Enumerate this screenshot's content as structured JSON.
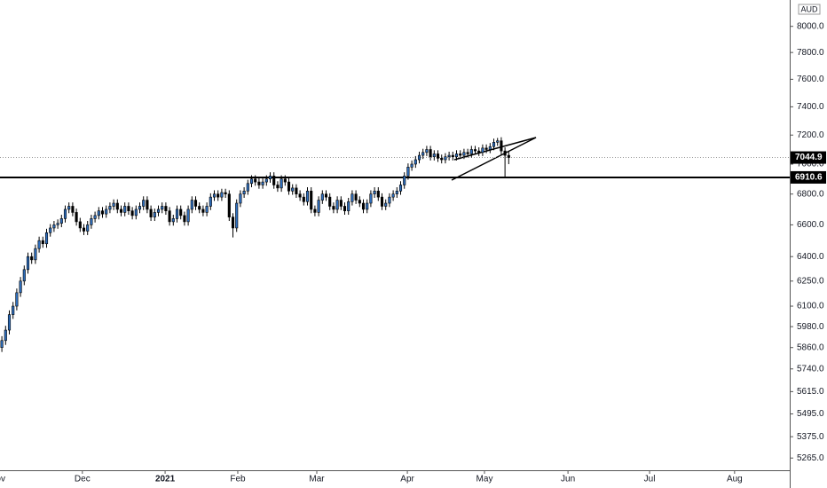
{
  "chart_data": {
    "type": "candlestick",
    "currency": "AUD",
    "log_scale": true,
    "up_color": "#2e6fbf",
    "down_color": "#000000",
    "hline": 6910.6,
    "xlim": [
      -0.5,
      211.4
    ],
    "xticks": [
      {
        "value": -1.2,
        "label": "Nov"
      },
      {
        "value": 21.6,
        "label": "Dec"
      },
      {
        "value": 43.8,
        "label": "2021"
      },
      {
        "value": 63.3,
        "label": "Feb"
      },
      {
        "value": 84.5,
        "label": "Mar"
      },
      {
        "value": 108.8,
        "label": "Apr"
      },
      {
        "value": 129.5,
        "label": "May"
      },
      {
        "value": 151.9,
        "label": "Jun"
      },
      {
        "value": 173.8,
        "label": "Jul"
      },
      {
        "value": 196.6,
        "label": "Aug"
      }
    ],
    "ylim": [
      5203,
      8207
    ],
    "yticks": [
      {
        "value": 8000,
        "label": "8000.0"
      },
      {
        "value": 7800,
        "label": "7800.0"
      },
      {
        "value": 7600,
        "label": "7600.0"
      },
      {
        "value": 7400,
        "label": "7400.0"
      },
      {
        "value": 7200,
        "label": "7200.0"
      },
      {
        "value": 7000,
        "label": "7000.0"
      },
      {
        "value": 6800,
        "label": "6800.0"
      },
      {
        "value": 6600,
        "label": "6600.0"
      },
      {
        "value": 6400,
        "label": "6400.0"
      },
      {
        "value": 6250,
        "label": "6250.0"
      },
      {
        "value": 6100,
        "label": "6100.0"
      },
      {
        "value": 5980,
        "label": "5980.0"
      },
      {
        "value": 5860,
        "label": "5860.0"
      },
      {
        "value": 5740,
        "label": "5740.0"
      },
      {
        "value": 5615,
        "label": "5615.0"
      },
      {
        "value": 5495,
        "label": "5495.0"
      },
      {
        "value": 5375,
        "label": "5375.0"
      },
      {
        "value": 5265,
        "label": "5265.0"
      }
    ],
    "open": [
      5860,
      5900,
      5960,
      6050,
      6100,
      6180,
      6250,
      6320,
      6400,
      6380,
      6450,
      6500,
      6480,
      6550,
      6580,
      6600,
      6610,
      6640,
      6700,
      6720,
      6680,
      6620,
      6580,
      6560,
      6600,
      6640,
      6660,
      6690,
      6670,
      6700,
      6720,
      6740,
      6700,
      6680,
      6720,
      6690,
      6660,
      6700,
      6720,
      6760,
      6700,
      6650,
      6680,
      6700,
      6720,
      6690,
      6620,
      6640,
      6700,
      6660,
      6620,
      6700,
      6760,
      6720,
      6700,
      6680,
      6720,
      6780,
      6800,
      6780,
      6810,
      6800,
      6650,
      6580,
      6740,
      6800,
      6820,
      6870,
      6900,
      6880,
      6860,
      6880,
      6900,
      6920,
      6860,
      6840,
      6900,
      6880,
      6820,
      6840,
      6800,
      6780,
      6750,
      6820,
      6700,
      6680,
      6760,
      6800,
      6780,
      6720,
      6700,
      6760,
      6720,
      6690,
      6750,
      6800,
      6760,
      6740,
      6700,
      6740,
      6800,
      6820,
      6780,
      6720,
      6740,
      6780,
      6800,
      6820,
      6860,
      6920,
      6980,
      7000,
      7030,
      7060,
      7080,
      7100,
      7050,
      7070,
      7040,
      7030,
      7050,
      7060,
      7050,
      7070,
      7060,
      7080,
      7070,
      7100,
      7090,
      7080,
      7110,
      7100,
      7120,
      7150,
      7160,
      7090,
      7060
    ],
    "high": [
      5925,
      5985,
      6075,
      6125,
      6205,
      6275,
      6345,
      6425,
      6425,
      6475,
      6525,
      6525,
      6575,
      6605,
      6625,
      6635,
      6665,
      6725,
      6745,
      6745,
      6705,
      6645,
      6605,
      6625,
      6665,
      6685,
      6715,
      6715,
      6725,
      6745,
      6765,
      6765,
      6725,
      6745,
      6745,
      6715,
      6725,
      6745,
      6785,
      6785,
      6725,
      6705,
      6725,
      6745,
      6745,
      6715,
      6665,
      6725,
      6725,
      6685,
      6725,
      6785,
      6785,
      6745,
      6725,
      6745,
      6805,
      6825,
      6825,
      6835,
      6835,
      6825,
      6675,
      6765,
      6825,
      6845,
      6895,
      6925,
      6925,
      6905,
      6905,
      6925,
      6945,
      6945,
      6885,
      6925,
      6925,
      6905,
      6865,
      6865,
      6825,
      6805,
      6845,
      6845,
      6725,
      6785,
      6825,
      6825,
      6805,
      6745,
      6785,
      6785,
      6745,
      6775,
      6825,
      6825,
      6785,
      6765,
      6765,
      6825,
      6845,
      6845,
      6805,
      6765,
      6805,
      6825,
      6845,
      6885,
      6945,
      7005,
      7025,
      7055,
      7085,
      7105,
      7125,
      7125,
      7095,
      7095,
      7065,
      7075,
      7085,
      7085,
      7095,
      7095,
      7105,
      7105,
      7125,
      7125,
      7115,
      7135,
      7135,
      7145,
      7175,
      7180,
      7185,
      7115,
      7085
    ],
    "low": [
      5835,
      5875,
      5935,
      6025,
      6075,
      6155,
      6225,
      6295,
      6355,
      6355,
      6425,
      6455,
      6455,
      6525,
      6555,
      6575,
      6585,
      6615,
      6675,
      6655,
      6595,
      6555,
      6535,
      6535,
      6575,
      6615,
      6635,
      6645,
      6645,
      6675,
      6695,
      6675,
      6655,
      6655,
      6665,
      6635,
      6635,
      6675,
      6695,
      6675,
      6625,
      6625,
      6655,
      6675,
      6665,
      6595,
      6595,
      6615,
      6635,
      6595,
      6595,
      6675,
      6695,
      6675,
      6655,
      6655,
      6695,
      6755,
      6755,
      6755,
      6775,
      6625,
      6520,
      6555,
      6715,
      6775,
      6795,
      6845,
      6855,
      6835,
      6835,
      6855,
      6875,
      6835,
      6815,
      6815,
      6855,
      6795,
      6795,
      6775,
      6755,
      6725,
      6725,
      6675,
      6655,
      6655,
      6735,
      6755,
      6695,
      6675,
      6675,
      6695,
      6665,
      6665,
      6725,
      6735,
      6715,
      6675,
      6675,
      6715,
      6775,
      6755,
      6695,
      6695,
      6715,
      6755,
      6775,
      6795,
      6835,
      6895,
      6955,
      6975,
      7005,
      7035,
      7055,
      7025,
      7025,
      7015,
      7005,
      7005,
      7025,
      7025,
      7025,
      7035,
      7035,
      7045,
      7045,
      7065,
      7055,
      7055,
      7075,
      7075,
      7095,
      7125,
      7065,
      6910,
      7000
    ],
    "close": [
      5900,
      5960,
      6050,
      6100,
      6180,
      6250,
      6320,
      6400,
      6380,
      6450,
      6500,
      6480,
      6550,
      6580,
      6600,
      6610,
      6640,
      6700,
      6720,
      6680,
      6620,
      6580,
      6560,
      6600,
      6640,
      6660,
      6690,
      6670,
      6700,
      6720,
      6740,
      6700,
      6680,
      6720,
      6690,
      6660,
      6700,
      6720,
      6760,
      6700,
      6650,
      6680,
      6700,
      6720,
      6690,
      6620,
      6640,
      6700,
      6660,
      6620,
      6700,
      6760,
      6720,
      6700,
      6680,
      6720,
      6780,
      6800,
      6780,
      6810,
      6800,
      6650,
      6580,
      6740,
      6800,
      6820,
      6870,
      6900,
      6880,
      6860,
      6880,
      6900,
      6920,
      6860,
      6840,
      6900,
      6880,
      6820,
      6840,
      6800,
      6780,
      6750,
      6820,
      6700,
      6680,
      6760,
      6800,
      6780,
      6720,
      6700,
      6760,
      6720,
      6690,
      6750,
      6800,
      6760,
      6740,
      6700,
      6740,
      6800,
      6820,
      6780,
      6720,
      6740,
      6780,
      6800,
      6820,
      6860,
      6920,
      6980,
      7000,
      7030,
      7060,
      7080,
      7100,
      7050,
      7070,
      7040,
      7030,
      7050,
      7060,
      7050,
      7070,
      7060,
      7080,
      7070,
      7100,
      7090,
      7080,
      7110,
      7100,
      7120,
      7150,
      7160,
      7090,
      7060,
      7044.9
    ]
  }
}
